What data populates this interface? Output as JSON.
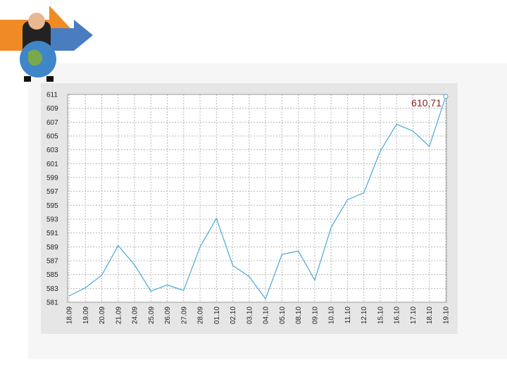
{
  "chart_data": {
    "type": "line",
    "categories": [
      "18.09",
      "19.09",
      "20.09",
      "21.09",
      "24.09",
      "25.09",
      "26.09",
      "27.09",
      "28.09",
      "01.10",
      "02.10",
      "03.10",
      "04.10",
      "05.10",
      "08.10",
      "09.10",
      "10.10",
      "11.10",
      "12.10",
      "15.10",
      "16.10",
      "17.10",
      "18.10",
      "19.10"
    ],
    "values": [
      581.9,
      583.1,
      584.9,
      589.2,
      586.4,
      582.6,
      583.5,
      582.7,
      589.0,
      593.1,
      586.3,
      584.7,
      581.5,
      587.9,
      588.4,
      584.2,
      591.8,
      595.8,
      596.8,
      602.8,
      606.7,
      605.7,
      603.5,
      610.71
    ],
    "value_labels": [
      null,
      null,
      null,
      null,
      null,
      null,
      null,
      null,
      null,
      null,
      null,
      null,
      null,
      null,
      null,
      null,
      null,
      null,
      null,
      null,
      null,
      null,
      null,
      "610,71"
    ],
    "color": "#4aa8d8",
    "ylim": [
      581,
      611
    ],
    "yticks": [
      581,
      583,
      585,
      587,
      589,
      591,
      593,
      595,
      597,
      599,
      601,
      603,
      605,
      607,
      609,
      611
    ],
    "grid": true
  }
}
